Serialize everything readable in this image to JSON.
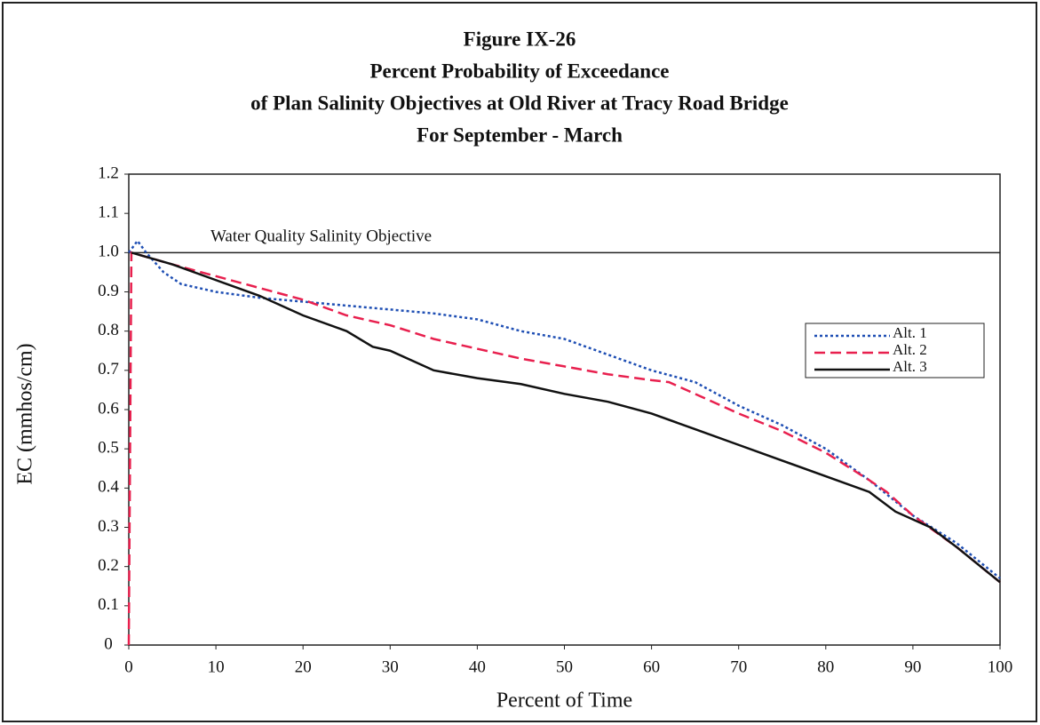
{
  "chart_data": {
    "type": "line",
    "title": [
      "Figure IX-26",
      "Percent Probability of Exceedance",
      "of Plan Salinity Objectives at Old River at Tracy Road Bridge",
      "For September - March"
    ],
    "x_label": "Percent of Time",
    "y_label": "EC (mmhos/cm)",
    "reference_line": {
      "value": 1,
      "label": "Water Quality Salinity Objective"
    },
    "xlim": [
      0,
      100
    ],
    "ylim": [
      0,
      1.2
    ],
    "xticks": [
      0,
      10,
      20,
      30,
      40,
      50,
      60,
      70,
      80,
      90,
      100
    ],
    "yticks": [
      0,
      0.1,
      0.2,
      0.3,
      0.4,
      0.5,
      0.6,
      0.7,
      0.8,
      0.9,
      {
        "value": 1,
        "label": "1.0"
      },
      1.1,
      1.2
    ],
    "legend": "right",
    "series": [
      {
        "name": "Alt. 1",
        "color": "#1f4fb4",
        "dash": "dotted",
        "x": [
          0,
          1,
          2,
          4,
          6,
          10,
          15,
          20,
          25,
          30,
          35,
          40,
          45,
          50,
          55,
          60,
          65,
          70,
          75,
          80,
          85,
          90,
          95,
          100
        ],
        "values": [
          1.0,
          1.03,
          1.0,
          0.95,
          0.92,
          0.9,
          0.885,
          0.875,
          0.865,
          0.855,
          0.845,
          0.83,
          0.8,
          0.78,
          0.74,
          0.7,
          0.67,
          0.61,
          0.56,
          0.5,
          0.42,
          0.33,
          0.26,
          0.17
        ]
      },
      {
        "name": "Alt. 2",
        "color": "#e8204e",
        "dash": "dashed",
        "x": [
          0,
          0.3,
          5,
          10,
          15,
          20,
          25,
          30,
          35,
          40,
          45,
          50,
          55,
          60,
          62,
          65,
          70,
          75,
          80,
          85,
          87,
          90,
          95,
          100
        ],
        "values": [
          0,
          1.0,
          0.97,
          0.94,
          0.91,
          0.88,
          0.84,
          0.815,
          0.78,
          0.755,
          0.73,
          0.71,
          0.69,
          0.675,
          0.67,
          0.64,
          0.59,
          0.545,
          0.49,
          0.42,
          0.39,
          0.33,
          0.25,
          0.16
        ]
      },
      {
        "name": "Alt. 3",
        "color": "#111111",
        "dash": "solid",
        "x": [
          0.3,
          5,
          10,
          15,
          20,
          25,
          28,
          30,
          35,
          40,
          45,
          50,
          55,
          60,
          65,
          70,
          75,
          80,
          85,
          88,
          92,
          95,
          100
        ],
        "values": [
          1.0,
          0.97,
          0.93,
          0.89,
          0.84,
          0.8,
          0.76,
          0.75,
          0.7,
          0.68,
          0.665,
          0.64,
          0.62,
          0.59,
          0.55,
          0.51,
          0.47,
          0.43,
          0.39,
          0.34,
          0.3,
          0.25,
          0.16
        ]
      }
    ]
  }
}
